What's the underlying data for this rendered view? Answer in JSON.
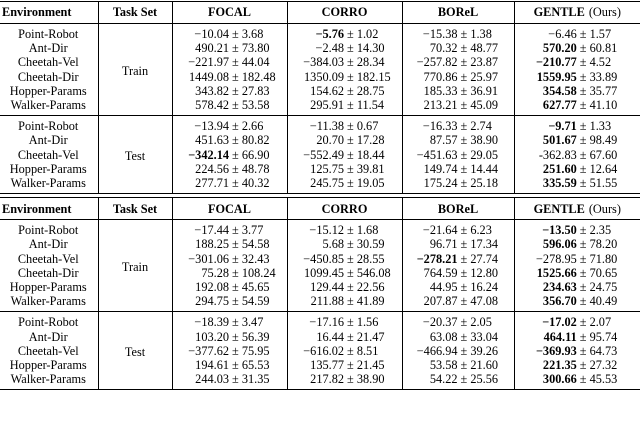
{
  "tables": [
    {
      "header": [
        "Environment",
        "Task Set",
        "FOCAL",
        "CORRO",
        "BOReL",
        "GENTLE"
      ],
      "header_note": "(Ours)",
      "groups": [
        {
          "task_set": "Train",
          "rows": [
            {
              "environment": "Point-Robot",
              "cells": [
                {
                  "mean": "−10.04",
                  "std": "± 3.68",
                  "bold": false
                },
                {
                  "mean": "−5.76",
                  "std": "± 1.02",
                  "bold": true
                },
                {
                  "mean": "−15.38",
                  "std": "± 1.38",
                  "bold": false
                },
                {
                  "mean": "−6.46",
                  "std": "± 1.57",
                  "bold": false
                }
              ]
            },
            {
              "environment": "Ant-Dir",
              "cells": [
                {
                  "mean": "490.21",
                  "std": "± 73.80",
                  "bold": false
                },
                {
                  "mean": "−2.48",
                  "std": "± 14.30",
                  "bold": false
                },
                {
                  "mean": "70.32",
                  "std": "± 48.77",
                  "bold": false
                },
                {
                  "mean": "570.20",
                  "std": "± 60.81",
                  "bold": true
                }
              ]
            },
            {
              "environment": "Cheetah-Vel",
              "cells": [
                {
                  "mean": "−221.97",
                  "std": "± 44.04",
                  "bold": false
                },
                {
                  "mean": "−384.03",
                  "std": "± 28.34",
                  "bold": false
                },
                {
                  "mean": "−257.82",
                  "std": "± 23.87",
                  "bold": false
                },
                {
                  "mean": "−210.77",
                  "std": "± 4.52",
                  "bold": true
                }
              ]
            },
            {
              "environment": "Cheetah-Dir",
              "cells": [
                {
                  "mean": "1449.08",
                  "std": "± 182.48",
                  "bold": false
                },
                {
                  "mean": "1350.09",
                  "std": "± 182.15",
                  "bold": false
                },
                {
                  "mean": "770.86",
                  "std": "± 25.97",
                  "bold": false
                },
                {
                  "mean": "1559.95",
                  "std": "± 33.89",
                  "bold": true
                }
              ]
            },
            {
              "environment": "Hopper-Params",
              "cells": [
                {
                  "mean": "343.82",
                  "std": "± 27.83",
                  "bold": false
                },
                {
                  "mean": "154.62",
                  "std": "± 28.75",
                  "bold": false
                },
                {
                  "mean": "185.33",
                  "std": "± 36.91",
                  "bold": false
                },
                {
                  "mean": "354.58",
                  "std": "± 35.77",
                  "bold": true
                }
              ]
            },
            {
              "environment": "Walker-Params",
              "cells": [
                {
                  "mean": "578.42",
                  "std": "± 53.58",
                  "bold": false
                },
                {
                  "mean": "295.91",
                  "std": "± 11.54",
                  "bold": false
                },
                {
                  "mean": "213.21",
                  "std": "± 45.09",
                  "bold": false
                },
                {
                  "mean": "627.77",
                  "std": "± 41.10",
                  "bold": true
                }
              ]
            }
          ]
        },
        {
          "task_set": "Test",
          "rows": [
            {
              "environment": "Point-Robot",
              "cells": [
                {
                  "mean": "−13.94",
                  "std": "± 2.66",
                  "bold": false
                },
                {
                  "mean": "−11.38",
                  "std": "± 0.67",
                  "bold": false
                },
                {
                  "mean": "−16.33",
                  "std": "± 2.74",
                  "bold": false
                },
                {
                  "mean": "−9.71",
                  "std": "± 1.33",
                  "bold": true
                }
              ]
            },
            {
              "environment": "Ant-Dir",
              "cells": [
                {
                  "mean": "451.63",
                  "std": "± 80.82",
                  "bold": false
                },
                {
                  "mean": "20.70",
                  "std": "± 17.28",
                  "bold": false
                },
                {
                  "mean": "87.57",
                  "std": "± 38.90",
                  "bold": false
                },
                {
                  "mean": "501.67",
                  "std": "± 98.49",
                  "bold": true
                }
              ]
            },
            {
              "environment": "Cheetah-Vel",
              "cells": [
                {
                  "mean": "−342.14",
                  "std": "± 66.90",
                  "bold": true
                },
                {
                  "mean": "−552.49",
                  "std": "± 18.44",
                  "bold": false
                },
                {
                  "mean": "−451.63",
                  "std": "± 29.05",
                  "bold": false
                },
                {
                  "mean": "-362.83",
                  "std": "± 67.60",
                  "bold": false
                }
              ]
            },
            {
              "environment": "Hopper-Params",
              "cells": [
                {
                  "mean": "224.56",
                  "std": "± 48.78",
                  "bold": false
                },
                {
                  "mean": "125.75",
                  "std": "± 39.81",
                  "bold": false
                },
                {
                  "mean": "149.74",
                  "std": "± 14.44",
                  "bold": false
                },
                {
                  "mean": "251.60",
                  "std": "± 12.64",
                  "bold": true
                }
              ]
            },
            {
              "environment": "Walker-Params",
              "cells": [
                {
                  "mean": "277.71",
                  "std": "± 40.32",
                  "bold": false
                },
                {
                  "mean": "245.75",
                  "std": "± 19.05",
                  "bold": false
                },
                {
                  "mean": "175.24",
                  "std": "± 25.18",
                  "bold": false
                },
                {
                  "mean": "335.59",
                  "std": "± 51.55",
                  "bold": true
                }
              ]
            }
          ]
        }
      ]
    },
    {
      "header": [
        "Environment",
        "Task Set",
        "FOCAL",
        "CORRO",
        "BOReL",
        "GENTLE"
      ],
      "header_note": "(Ours)",
      "groups": [
        {
          "task_set": "Train",
          "rows": [
            {
              "environment": "Point-Robot",
              "cells": [
                {
                  "mean": "−17.44",
                  "std": "± 3.77",
                  "bold": false
                },
                {
                  "mean": "−15.12",
                  "std": "± 1.68",
                  "bold": false
                },
                {
                  "mean": "−21.64",
                  "std": "± 6.23",
                  "bold": false
                },
                {
                  "mean": "−13.50",
                  "std": "± 2.35",
                  "bold": true
                }
              ]
            },
            {
              "environment": "Ant-Dir",
              "cells": [
                {
                  "mean": "188.25",
                  "std": "± 54.58",
                  "bold": false
                },
                {
                  "mean": "5.68",
                  "std": "± 30.59",
                  "bold": false
                },
                {
                  "mean": "96.71",
                  "std": "± 17.34",
                  "bold": false
                },
                {
                  "mean": "596.06",
                  "std": "± 78.20",
                  "bold": true
                }
              ]
            },
            {
              "environment": "Cheetah-Vel",
              "cells": [
                {
                  "mean": "−301.06",
                  "std": "± 32.43",
                  "bold": false
                },
                {
                  "mean": "−450.85",
                  "std": "± 28.55",
                  "bold": false
                },
                {
                  "mean": "−278.21",
                  "std": "± 27.74",
                  "bold": true
                },
                {
                  "mean": "−278.95",
                  "std": "± 71.80",
                  "bold": false
                }
              ]
            },
            {
              "environment": "Cheetah-Dir",
              "cells": [
                {
                  "mean": "75.28",
                  "std": "± 108.24",
                  "bold": false
                },
                {
                  "mean": "1099.45",
                  "std": "± 546.08",
                  "bold": false
                },
                {
                  "mean": "764.59",
                  "std": "± 12.80",
                  "bold": false
                },
                {
                  "mean": "1525.66",
                  "std": "± 70.65",
                  "bold": true
                }
              ]
            },
            {
              "environment": "Hopper-Params",
              "cells": [
                {
                  "mean": "192.08",
                  "std": "± 45.65",
                  "bold": false
                },
                {
                  "mean": "129.44",
                  "std": "± 22.56",
                  "bold": false
                },
                {
                  "mean": "44.95",
                  "std": "± 16.24",
                  "bold": false
                },
                {
                  "mean": "234.63",
                  "std": "± 24.75",
                  "bold": true
                }
              ]
            },
            {
              "environment": "Walker-Params",
              "cells": [
                {
                  "mean": "294.75",
                  "std": "± 54.59",
                  "bold": false
                },
                {
                  "mean": "211.88",
                  "std": "± 41.89",
                  "bold": false
                },
                {
                  "mean": "207.87",
                  "std": "± 47.08",
                  "bold": false
                },
                {
                  "mean": "356.70",
                  "std": "± 40.49",
                  "bold": true
                }
              ]
            }
          ]
        },
        {
          "task_set": "Test",
          "rows": [
            {
              "environment": "Point-Robot",
              "cells": [
                {
                  "mean": "−18.39",
                  "std": "± 3.47",
                  "bold": false
                },
                {
                  "mean": "−17.16",
                  "std": "± 1.56",
                  "bold": false
                },
                {
                  "mean": "−20.37",
                  "std": "± 2.05",
                  "bold": false
                },
                {
                  "mean": "−17.02",
                  "std": "± 2.07",
                  "bold": true
                }
              ]
            },
            {
              "environment": "Ant-Dir",
              "cells": [
                {
                  "mean": "103.20",
                  "std": "± 56.39",
                  "bold": false
                },
                {
                  "mean": "16.44",
                  "std": "± 21.47",
                  "bold": false
                },
                {
                  "mean": "63.08",
                  "std": "± 33.04",
                  "bold": false
                },
                {
                  "mean": "464.11",
                  "std": "± 95.74",
                  "bold": true
                }
              ]
            },
            {
              "environment": "Cheetah-Vel",
              "cells": [
                {
                  "mean": "−377.62",
                  "std": "± 75.95",
                  "bold": false
                },
                {
                  "mean": "−616.02",
                  "std": "± 8.51",
                  "bold": false
                },
                {
                  "mean": "−466.94",
                  "std": "± 39.26",
                  "bold": false
                },
                {
                  "mean": "−369.93",
                  "std": "± 64.73",
                  "bold": true
                }
              ]
            },
            {
              "environment": "Hopper-Params",
              "cells": [
                {
                  "mean": "194.61",
                  "std": "± 65.53",
                  "bold": false
                },
                {
                  "mean": "135.77",
                  "std": "± 21.45",
                  "bold": false
                },
                {
                  "mean": "53.58",
                  "std": "± 21.60",
                  "bold": false
                },
                {
                  "mean": "221.35",
                  "std": "± 27.32",
                  "bold": true
                }
              ]
            },
            {
              "environment": "Walker-Params",
              "cells": [
                {
                  "mean": "244.03",
                  "std": "± 31.35",
                  "bold": false
                },
                {
                  "mean": "217.82",
                  "std": "± 38.90",
                  "bold": false
                },
                {
                  "mean": "54.22",
                  "std": "± 25.56",
                  "bold": false
                },
                {
                  "mean": "300.66",
                  "std": "± 45.53",
                  "bold": true
                }
              ]
            }
          ]
        }
      ]
    }
  ]
}
